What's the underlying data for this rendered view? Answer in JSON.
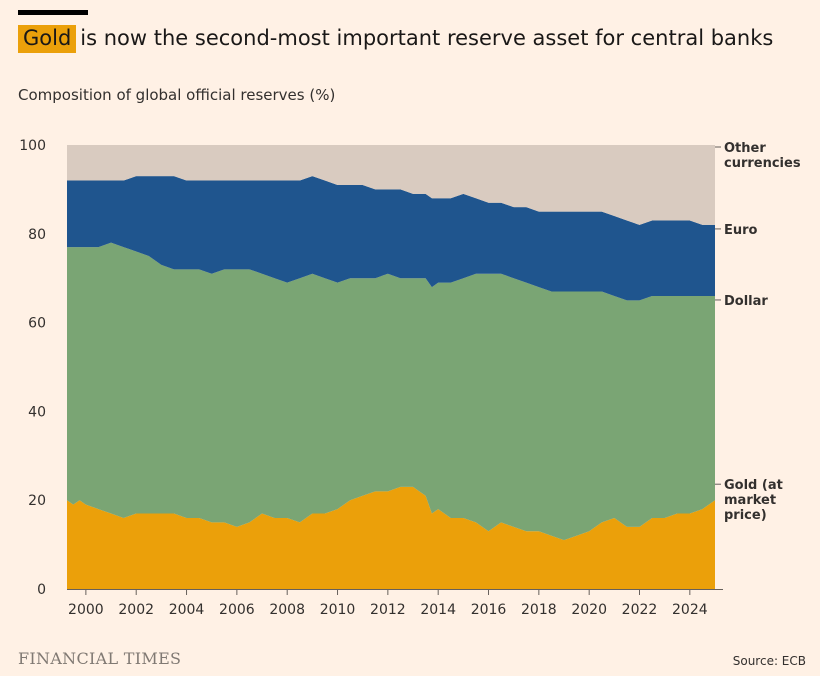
{
  "header": {
    "title_highlight": "Gold",
    "title_rest": "is now the second-most important reserve asset for central banks",
    "subtitle": "Composition of global official reserves (%)"
  },
  "footer": {
    "logo": "FINANCIAL TIMES",
    "source": "Source: ECB"
  },
  "colors": {
    "background": "#fff1e5",
    "gold": "#eba00a",
    "dollar": "#7aa574",
    "euro": "#1f558e",
    "other": "#d9cbc0",
    "highlight": "#eba00a"
  },
  "chart_data": {
    "type": "area",
    "stacked": true,
    "ylim": [
      0,
      100
    ],
    "xlim": [
      1999.25,
      2025.0
    ],
    "y_ticks": [
      0,
      20,
      40,
      60,
      80,
      100
    ],
    "x_ticks": [
      2000,
      2002,
      2004,
      2006,
      2008,
      2010,
      2012,
      2014,
      2016,
      2018,
      2020,
      2022,
      2024
    ],
    "x": [
      1999.25,
      1999.5,
      1999.75,
      2000,
      2000.5,
      2001,
      2001.5,
      2002,
      2002.5,
      2003,
      2003.5,
      2004,
      2004.5,
      2005,
      2005.5,
      2006,
      2006.5,
      2007,
      2007.5,
      2008,
      2008.5,
      2009,
      2009.5,
      2010,
      2010.5,
      2011,
      2011.5,
      2012,
      2012.5,
      2013,
      2013.25,
      2013.5,
      2013.75,
      2014,
      2014.5,
      2015,
      2015.5,
      2016,
      2016.5,
      2017,
      2017.5,
      2018,
      2018.5,
      2019,
      2019.5,
      2020,
      2020.5,
      2021,
      2021.5,
      2022,
      2022.5,
      2023,
      2023.5,
      2024,
      2024.5,
      2025
    ],
    "series": [
      {
        "name": "Gold (at market price)",
        "label_lines": [
          "Gold (at",
          "market",
          "price)"
        ],
        "color": "#eba00a",
        "values": [
          20,
          19,
          20,
          19,
          18,
          17,
          16,
          17,
          17,
          17,
          17,
          16,
          16,
          15,
          15,
          14,
          15,
          17,
          16,
          16,
          15,
          17,
          17,
          18,
          20,
          21,
          22,
          22,
          23,
          23,
          22,
          21,
          17,
          18,
          16,
          16,
          15,
          13,
          15,
          14,
          13,
          13,
          12,
          11,
          12,
          13,
          15,
          16,
          14,
          14,
          16,
          16,
          17,
          17,
          18,
          20
        ]
      },
      {
        "name": "Dollar",
        "label_lines": [
          "Dollar"
        ],
        "color": "#7aa574",
        "values": [
          57,
          58,
          57,
          58,
          59,
          61,
          61,
          59,
          58,
          56,
          55,
          56,
          56,
          56,
          57,
          58,
          57,
          54,
          54,
          53,
          55,
          54,
          53,
          51,
          50,
          49,
          48,
          49,
          47,
          47,
          48,
          49,
          51,
          51,
          53,
          54,
          56,
          58,
          56,
          56,
          56,
          55,
          55,
          56,
          55,
          54,
          52,
          50,
          51,
          51,
          50,
          50,
          49,
          49,
          48,
          46
        ]
      },
      {
        "name": "Euro",
        "label_lines": [
          "Euro"
        ],
        "color": "#1f558e",
        "values": [
          15,
          15,
          15,
          15,
          15,
          14,
          15,
          17,
          18,
          20,
          21,
          20,
          20,
          21,
          20,
          20,
          20,
          21,
          22,
          23,
          22,
          22,
          22,
          22,
          21,
          21,
          20,
          19,
          20,
          19,
          19,
          19,
          20,
          19,
          19,
          19,
          17,
          16,
          16,
          16,
          17,
          17,
          18,
          18,
          18,
          18,
          18,
          18,
          18,
          17,
          17,
          17,
          17,
          17,
          16,
          16
        ]
      },
      {
        "name": "Other currencies",
        "label_lines": [
          "Other",
          "currencies"
        ],
        "color": "#d9cbc0",
        "values": [
          8,
          8,
          8,
          8,
          8,
          8,
          8,
          7,
          7,
          7,
          7,
          8,
          8,
          8,
          8,
          8,
          8,
          8,
          8,
          8,
          8,
          7,
          8,
          9,
          9,
          9,
          10,
          10,
          10,
          11,
          11,
          11,
          12,
          12,
          12,
          11,
          12,
          13,
          13,
          14,
          14,
          15,
          15,
          15,
          15,
          15,
          15,
          16,
          17,
          18,
          17,
          17,
          17,
          17,
          18,
          18
        ]
      }
    ]
  }
}
